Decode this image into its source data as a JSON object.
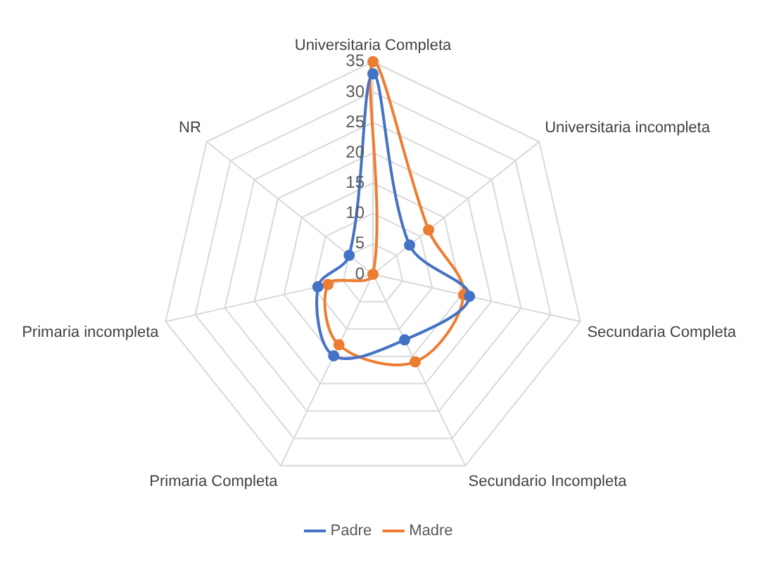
{
  "chart_data": {
    "type": "radar",
    "categories": [
      "Universitaria Completa",
      "Universitaria incompleta",
      "Secundaria Completa",
      "Secundario Incompleta",
      "Primaria Completa",
      "Primaria incompleta",
      "NR"
    ],
    "series": [
      {
        "name": "Padre",
        "color": "#4472c4",
        "values": [
          33,
          7.7,
          16.3,
          12,
          14.9,
          9.3,
          5
        ]
      },
      {
        "name": "Madre",
        "color": "#ed7d31",
        "values": [
          35,
          11.7,
          15.3,
          16,
          12.9,
          7.6,
          0
        ]
      }
    ],
    "ylim": [
      0,
      35
    ],
    "yticks": [
      0,
      5,
      10,
      15,
      20,
      25,
      30,
      35
    ],
    "grid": true,
    "legend": "bottom",
    "marker": "circle"
  }
}
